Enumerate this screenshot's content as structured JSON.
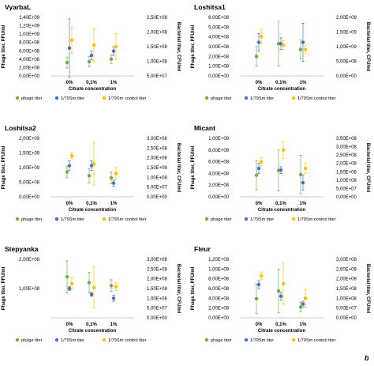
{
  "figure_label": "b",
  "legend": [
    "phage titer",
    "1/79Sm titer",
    "1/79Sm control titer"
  ],
  "colors": {
    "phage": "#70ad47",
    "bacteria": "#4472c4",
    "control": "#ffc000",
    "axis": "#bfbfbf",
    "errorbar": "#a6a6a6"
  },
  "chart_data": [
    {
      "type": "scatter",
      "title": "VyarbaL",
      "xlabel": "Citrate concentration",
      "ylabel": "Phage titer, PFU/ml",
      "y2label": "Bacterial titer, CFU/ml",
      "categories": [
        "0%",
        "0,1%",
        "1%"
      ],
      "ylim": [
        0,
        1400000000.0
      ],
      "y_ticks": [
        "0,00E+00",
        "2,00E+08",
        "4,00E+08",
        "6,00E+08",
        "8,00E+08",
        "1,00E+09",
        "1,20E+09",
        "1,40E+09"
      ],
      "y2lim": [
        50000000.0,
        250000000.0
      ],
      "y2_ticks": [
        "5,00E+07",
        "1,00E+08",
        "1,50E+08",
        "2,00E+08",
        "2,50E+08"
      ],
      "series": [
        {
          "name": "phage titer",
          "axis": "left",
          "values": [
            320000000.0,
            340000000.0,
            400000000.0
          ],
          "err": [
            130000000.0,
            120000000.0,
            100000000.0
          ]
        },
        {
          "name": "1/79Sm titer",
          "axis": "right",
          "values": [
            145000000.0,
            120000000.0,
            135000000.0
          ],
          "err": [
            100000000.0,
            15000000.0,
            15000000.0
          ]
        },
        {
          "name": "1/79Sm control titer",
          "axis": "right",
          "values": [
            172000000.0,
            155000000.0,
            150000000.0
          ],
          "err": [
            45000000.0,
            55000000.0,
            45000000.0
          ]
        }
      ]
    },
    {
      "type": "scatter",
      "title": "Loshitsa1",
      "xlabel": "Citrate concentration",
      "ylabel": "Phage titer, PFU/ml",
      "y2label": "Bacterial titer, CFU/ml",
      "categories": [
        "0%",
        "0,1%",
        "1%"
      ],
      "ylim": [
        0,
        600000000.0
      ],
      "y_ticks": [
        "0,00E+00",
        "1,00E+08",
        "2,00E+08",
        "3,00E+08",
        "4,00E+08",
        "5,00E+08",
        "6,00E+08"
      ],
      "y2lim": [
        0,
        2000000000.0
      ],
      "y2_ticks": [
        "0,00E+00",
        "5,00E+08",
        "1,00E+09",
        "1,50E+09",
        "2,00E+09"
      ],
      "series": [
        {
          "name": "phage titer",
          "axis": "left",
          "values": [
            200000000.0,
            330000000.0,
            270000000.0
          ],
          "err": [
            100000000.0,
            230000000.0,
            100000000.0
          ]
        },
        {
          "name": "1/79Sm titer",
          "axis": "right",
          "values": [
            1150000000.0,
            1100000000.0,
            1150000000.0
          ],
          "err": [
            300000000.0,
            200000000.0,
            650000000.0
          ]
        },
        {
          "name": "1/79Sm control titer",
          "axis": "right",
          "values": [
            1350000000.0,
            1050000000.0,
            900000000.0
          ],
          "err": [
            250000000.0,
            150000000.0,
            150000000.0
          ]
        }
      ]
    },
    {
      "type": "scatter",
      "title": "Loshitsa2",
      "xlabel": "Citrate concentration",
      "ylabel": "Phage titer, PFU/ml",
      "y2label": "Bacterial titer, CFU/ml",
      "categories": [
        "0%",
        "0,1%",
        "1%"
      ],
      "ylim": [
        0,
        2000000000.0
      ],
      "y_ticks": [
        "0,00E+00",
        "5,00E+08",
        "1,00E+09",
        "1,50E+09",
        "2,00E+09"
      ],
      "y2lim": [
        0,
        300000000.0
      ],
      "y2_ticks": [
        "0,00E+00",
        "5,00E+07",
        "1,00E+08",
        "1,50E+08",
        "2,00E+08",
        "2,50E+08",
        "3,00E+08"
      ],
      "series": [
        {
          "name": "phage titer",
          "axis": "left",
          "values": [
            850000000.0,
            720000000.0,
            650000000.0
          ],
          "err": [
            200000000.0,
            250000000.0,
            200000000.0
          ]
        },
        {
          "name": "1/79Sm titer",
          "axis": "right",
          "values": [
            160000000.0,
            160000000.0,
            70000000.0
          ],
          "err": [
            25000000.0,
            25000000.0,
            15000000.0
          ]
        },
        {
          "name": "1/79Sm control titer",
          "axis": "right",
          "values": [
            210000000.0,
            170000000.0,
            120000000.0
          ],
          "err": [
            15000000.0,
            110000000.0,
            30000000.0
          ]
        }
      ]
    },
    {
      "type": "scatter",
      "title": "Micant",
      "xlabel": "Citrate concentration",
      "ylabel": "Phage titer, PFU/ml",
      "y2label": "Bacterial titer, CFU/ml",
      "categories": [
        "0%",
        "0,1%",
        "1%"
      ],
      "ylim": [
        0,
        1000000000.0
      ],
      "y_ticks": [
        "0,00E+00",
        "2,00E+08",
        "4,00E+08",
        "6,00E+08",
        "8,00E+08",
        "1,00E+09"
      ],
      "y2lim": [
        0,
        350000000.0
      ],
      "y2_ticks": [
        "0,00E+00",
        "5,00E+07",
        "1,00E+08",
        "1,50E+08",
        "2,00E+08",
        "2,50E+08",
        "3,00E+08",
        "3,50E+08"
      ],
      "series": [
        {
          "name": "phage titer",
          "axis": "left",
          "values": [
            370000000.0,
            450000000.0,
            380000000.0
          ],
          "err": [
            250000000.0,
            350000000.0,
            330000000.0
          ]
        },
        {
          "name": "1/79Sm titer",
          "axis": "right",
          "values": [
            170000000.0,
            160000000.0,
            85000000.0
          ],
          "err": [
            30000000.0,
            20000000.0,
            45000000.0
          ]
        },
        {
          "name": "1/79Sm control titer",
          "axis": "right",
          "values": [
            210000000.0,
            280000000.0,
            170000000.0
          ],
          "err": [
            25000000.0,
            50000000.0,
            30000000.0
          ]
        }
      ]
    },
    {
      "type": "scatter",
      "title": "Stepyanka",
      "xlabel": "Citrate concentration",
      "ylabel": "Phage titer, PFU/ml",
      "y2label": "Bacterial titer, CFU/ml",
      "categories": [
        "0%",
        "0,1%",
        "1%"
      ],
      "ylim": [
        0,
        200000000.0
      ],
      "y_ticks": [
        "1,00E+08",
        "2,00E+08"
      ],
      "y2lim": [
        0,
        300000000.0
      ],
      "y2_ticks": [
        "0,00E+00",
        "5,00E+07",
        "1,00E+08",
        "1,50E+08",
        "2,00E+08",
        "2,50E+08",
        "3,00E+08"
      ],
      "series": [
        {
          "name": "phage titer",
          "axis": "left",
          "values": [
            140000000.0,
            120000000.0,
            110000000.0
          ],
          "err": [
            55000000.0,
            35000000.0,
            20000000.0
          ]
        },
        {
          "name": "1/79Sm titer",
          "axis": "right",
          "values": [
            150000000.0,
            120000000.0,
            100000000.0
          ],
          "err": [
            10000000.0,
            10000000.0,
            15000000.0
          ]
        },
        {
          "name": "1/79Sm control titer",
          "axis": "right",
          "values": [
            175000000.0,
            155000000.0,
            160000000.0
          ],
          "err": [
            30000000.0,
            105000000.0,
            20000000.0
          ]
        }
      ]
    },
    {
      "type": "scatter",
      "title": "Fleur",
      "xlabel": "Citrate concentration",
      "ylabel": "Phage titer, PFU/ml",
      "y2label": "Bacterial titer, CFU/ml",
      "categories": [
        "0%",
        "0,1%",
        "1%"
      ],
      "ylim": [
        0,
        1200000000.0
      ],
      "y_ticks": [
        "0,00E+00",
        "2,00E+08",
        "4,00E+08",
        "6,00E+08",
        "8,00E+08",
        "1,00E+09",
        "1,20E+09"
      ],
      "y2lim": [
        0,
        300000000.0
      ],
      "y2_ticks": [
        "0,00E+00",
        "5,00E+07",
        "1,00E+08",
        "1,50E+08",
        "2,00E+08",
        "2,50E+08",
        "3,00E+08"
      ],
      "series": [
        {
          "name": "phage titer",
          "axis": "left",
          "values": [
            390000000.0,
            550000000.0,
            220000000.0
          ],
          "err": [
            300000000.0,
            450000000.0,
            100000000.0
          ]
        },
        {
          "name": "1/79Sm titer",
          "axis": "right",
          "values": [
            170000000.0,
            110000000.0,
            70000000.0
          ],
          "err": [
            20000000.0,
            20000000.0,
            15000000.0
          ]
        },
        {
          "name": "1/79Sm control titer",
          "axis": "right",
          "values": [
            215000000.0,
            175000000.0,
            100000000.0
          ],
          "err": [
            20000000.0,
            105000000.0,
            45000000.0
          ]
        }
      ]
    }
  ]
}
